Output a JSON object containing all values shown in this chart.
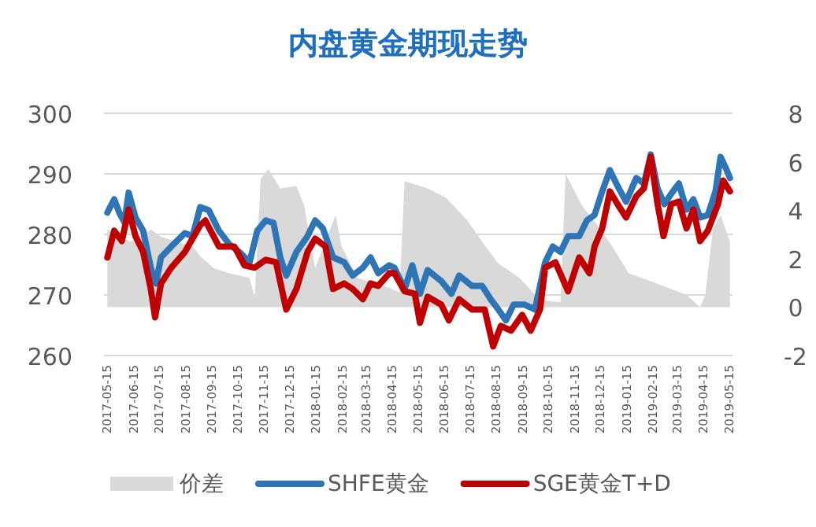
{
  "chart_data": {
    "type": "line",
    "title": "内盘黄金期现走势",
    "xlim": [
      "2017-05-12",
      "2019-05-20"
    ],
    "xticks": [
      "2017-05-15",
      "2017-06-15",
      "2017-07-15",
      "2017-08-15",
      "2017-09-15",
      "2017-10-15",
      "2017-11-15",
      "2017-12-15",
      "2018-01-15",
      "2018-02-15",
      "2018-03-15",
      "2018-04-15",
      "2018-05-15",
      "2018-06-15",
      "2018-07-15",
      "2018-08-15",
      "2018-09-15",
      "2018-10-15",
      "2018-11-15",
      "2018-12-15",
      "2019-01-15",
      "2019-02-15",
      "2019-03-15",
      "2019-04-15",
      "2019-05-15"
    ],
    "ylim": [
      260,
      300
    ],
    "yticks": [
      260,
      270,
      280,
      290,
      300
    ],
    "y2lim": [
      -2,
      8
    ],
    "y2ticks": [
      -2,
      0,
      2,
      4,
      6,
      8
    ],
    "grid": "y",
    "legend": "bottom",
    "line_style": "solid",
    "marker": "none",
    "series": [
      {
        "name": "价差",
        "type": "area",
        "axis": "y2",
        "color": "#d9d9d9",
        "x": [
          "2017-05-16",
          "2017-06-12",
          "2017-07-06",
          "2017-07-18",
          "2017-08-24",
          "2017-09-02",
          "2017-09-18",
          "2017-10-06",
          "2017-10-30",
          "2017-11-05",
          "2017-11-12",
          "2017-11-21",
          "2017-12-05",
          "2017-12-24",
          "2018-01-02",
          "2018-01-15",
          "2018-02-08",
          "2018-02-15",
          "2018-03-06",
          "2018-04-12",
          "2018-04-24",
          "2018-04-30",
          "2018-05-27",
          "2018-06-18",
          "2018-07-12",
          "2018-07-30",
          "2018-08-18",
          "2018-09-12",
          "2018-10-06",
          "2018-10-30",
          "2018-11-05",
          "2018-11-24",
          "2018-12-12",
          "2018-12-30",
          "2019-01-18",
          "2019-02-18",
          "2019-03-27",
          "2019-04-12",
          "2019-04-18",
          "2019-04-27",
          "2019-05-06",
          "2019-05-17"
        ],
        "values": [
          3.2,
          2.7,
          3.2,
          2.9,
          2.5,
          2.1,
          1.6,
          1.4,
          1.2,
          0.4,
          5.3,
          5.7,
          4.9,
          5.0,
          4.2,
          1.6,
          3.8,
          2.5,
          1.2,
          0.8,
          0.6,
          5.2,
          4.9,
          4.5,
          3.6,
          2.7,
          1.8,
          1.2,
          0.3,
          0.2,
          5.5,
          4.2,
          3.4,
          2.5,
          1.4,
          1.0,
          0.5,
          0.0,
          0.5,
          3.2,
          3.8,
          2.7
        ]
      },
      {
        "name": "SHFE黄金",
        "color": "#2e75b6",
        "x": [
          "2017-05-16",
          "2017-05-24",
          "2017-05-30",
          "2017-06-05",
          "2017-06-10",
          "2017-06-18",
          "2017-06-27",
          "2017-07-06",
          "2017-07-12",
          "2017-07-18",
          "2017-07-30",
          "2017-08-15",
          "2017-08-24",
          "2017-09-02",
          "2017-09-12",
          "2017-09-24",
          "2017-10-06",
          "2017-10-18",
          "2017-10-30",
          "2017-11-08",
          "2017-11-18",
          "2017-11-27",
          "2017-12-05",
          "2017-12-12",
          "2017-12-24",
          "2018-01-06",
          "2018-01-15",
          "2018-01-24",
          "2018-02-05",
          "2018-02-18",
          "2018-02-28",
          "2018-03-12",
          "2018-03-21",
          "2018-03-30",
          "2018-04-12",
          "2018-04-18",
          "2018-04-30",
          "2018-05-09",
          "2018-05-18",
          "2018-05-27",
          "2018-06-12",
          "2018-06-24",
          "2018-07-03",
          "2018-07-18",
          "2018-07-30",
          "2018-08-09",
          "2018-08-18",
          "2018-08-27",
          "2018-09-05",
          "2018-09-18",
          "2018-09-30",
          "2018-10-12",
          "2018-10-21",
          "2018-10-30",
          "2018-11-08",
          "2018-11-21",
          "2018-11-30",
          "2018-12-09",
          "2018-12-18",
          "2018-12-27",
          "2019-01-05",
          "2019-01-15",
          "2019-01-27",
          "2019-02-05",
          "2019-02-13",
          "2019-02-21",
          "2019-03-01",
          "2019-03-09",
          "2019-03-18",
          "2019-03-27",
          "2019-04-04",
          "2019-04-12",
          "2019-04-21",
          "2019-04-30",
          "2019-05-06",
          "2019-05-12",
          "2019-05-17"
        ],
        "values": [
          283.6,
          285.8,
          283.6,
          282.0,
          286.9,
          282.8,
          280.6,
          274.5,
          271.9,
          276.2,
          278.0,
          280.2,
          279.7,
          284.5,
          284.0,
          280.6,
          278.4,
          277.1,
          275.4,
          280.6,
          282.3,
          281.9,
          276.2,
          273.2,
          277.1,
          279.7,
          282.3,
          281.0,
          276.2,
          275.4,
          273.2,
          274.5,
          276.2,
          273.6,
          274.9,
          274.5,
          271.0,
          274.9,
          270.2,
          274.1,
          272.3,
          270.2,
          273.2,
          271.5,
          271.5,
          269.3,
          267.6,
          265.8,
          268.4,
          268.4,
          267.6,
          275.4,
          278.0,
          277.1,
          279.7,
          279.7,
          282.3,
          283.2,
          287.1,
          290.6,
          288.0,
          285.4,
          289.3,
          288.4,
          293.2,
          287.6,
          285.0,
          286.7,
          288.4,
          284.1,
          285.8,
          282.8,
          283.2,
          287.1,
          292.8,
          291.0,
          289.3
        ]
      },
      {
        "name": "SGE黄金T+D",
        "color": "#c00000",
        "x": [
          "2017-05-16",
          "2017-05-24",
          "2017-06-02",
          "2017-06-10",
          "2017-06-18",
          "2017-06-27",
          "2017-07-06",
          "2017-07-11",
          "2017-07-18",
          "2017-07-30",
          "2017-08-15",
          "2017-09-02",
          "2017-09-08",
          "2017-09-24",
          "2017-10-12",
          "2017-10-24",
          "2017-11-05",
          "2017-11-18",
          "2017-11-30",
          "2017-12-12",
          "2017-12-24",
          "2018-01-06",
          "2018-01-15",
          "2018-01-27",
          "2018-02-05",
          "2018-02-18",
          "2018-02-28",
          "2018-03-12",
          "2018-03-21",
          "2018-03-30",
          "2018-04-12",
          "2018-04-18",
          "2018-04-30",
          "2018-05-12",
          "2018-05-18",
          "2018-05-27",
          "2018-06-12",
          "2018-06-21",
          "2018-07-03",
          "2018-07-18",
          "2018-08-02",
          "2018-08-12",
          "2018-08-21",
          "2018-09-02",
          "2018-09-15",
          "2018-09-25",
          "2018-10-06",
          "2018-10-12",
          "2018-10-24",
          "2018-11-08",
          "2018-11-21",
          "2018-12-03",
          "2018-12-09",
          "2018-12-18",
          "2018-12-27",
          "2019-01-05",
          "2019-01-15",
          "2019-01-27",
          "2019-02-05",
          "2019-02-13",
          "2019-02-21",
          "2019-02-28",
          "2019-03-09",
          "2019-03-18",
          "2019-03-27",
          "2019-04-04",
          "2019-04-12",
          "2019-04-21",
          "2019-05-03",
          "2019-05-09",
          "2019-05-17"
        ],
        "values": [
          276.2,
          280.6,
          278.9,
          284.1,
          279.7,
          277.1,
          271.0,
          266.3,
          271.9,
          274.5,
          277.1,
          281.5,
          282.3,
          278.0,
          278.0,
          274.9,
          274.5,
          275.8,
          275.4,
          267.6,
          271.0,
          277.1,
          279.3,
          278.0,
          271.0,
          271.9,
          271.0,
          269.3,
          271.9,
          271.5,
          273.6,
          273.6,
          270.6,
          270.2,
          265.4,
          269.7,
          268.4,
          265.8,
          269.3,
          267.6,
          267.6,
          261.5,
          264.9,
          264.1,
          266.7,
          264.1,
          267.6,
          274.5,
          275.4,
          270.6,
          276.2,
          273.6,
          278.0,
          281.0,
          287.1,
          285.0,
          282.8,
          286.3,
          287.6,
          292.8,
          285.0,
          279.7,
          285.0,
          285.4,
          281.0,
          284.1,
          278.9,
          280.6,
          285.0,
          288.9,
          287.1
        ]
      }
    ]
  }
}
